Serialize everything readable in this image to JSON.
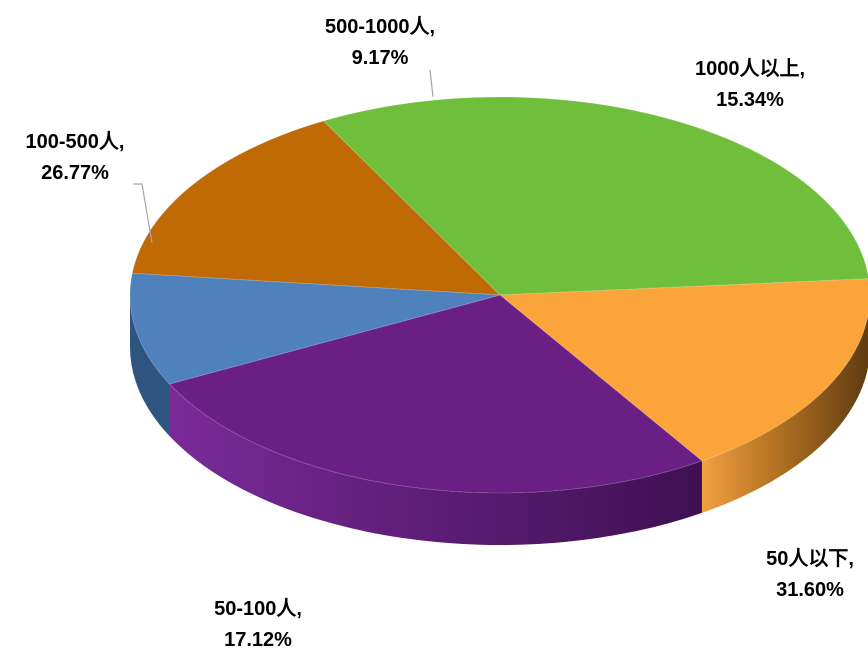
{
  "chart_data": {
    "type": "pie",
    "style": "3d",
    "title": "",
    "slices": [
      {
        "label": "1000人以上",
        "value": 15.34,
        "display": "15.34%",
        "color": "#C06A06"
      },
      {
        "label": "50人以下",
        "value": 31.6,
        "display": "31.60%",
        "color": "#70BF3C"
      },
      {
        "label": "50-100人",
        "value": 17.12,
        "display": "17.12%",
        "color": "#FAA43A"
      },
      {
        "label": "100-500人",
        "value": 26.77,
        "display": "26.77%",
        "color": "#6A1F85"
      },
      {
        "label": "500-1000人",
        "value": 9.17,
        "display": "9.17%",
        "color": "#4F81BD"
      }
    ],
    "data_labels": "category, percentage",
    "legend": "none"
  }
}
